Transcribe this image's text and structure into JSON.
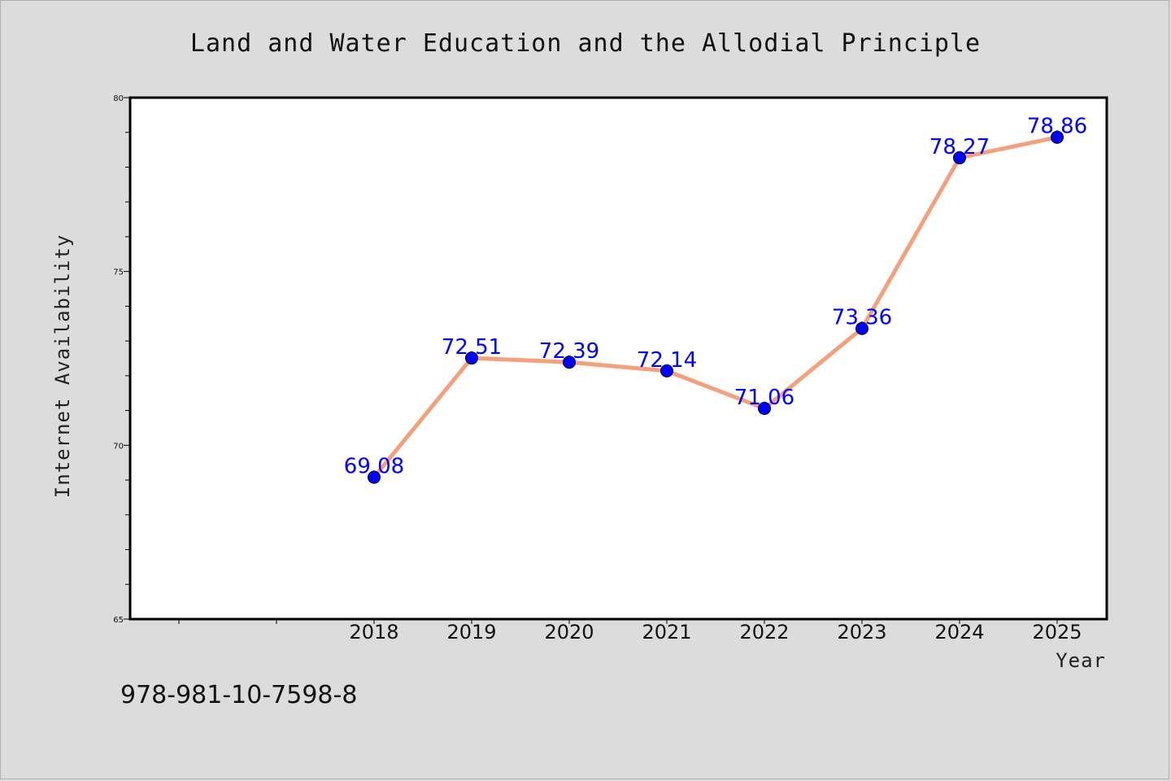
{
  "chart_data": {
    "type": "line",
    "title": "Land and Water Education and the Allodial Principle",
    "xlabel": "Year",
    "ylabel": "Internet Availability",
    "categories": [
      "2018",
      "2019",
      "2020",
      "2021",
      "2022",
      "2023",
      "2024",
      "2025"
    ],
    "series": [
      {
        "values": [
          69.08,
          72.51,
          72.39,
          72.14,
          71.06,
          73.36,
          78.27,
          78.86
        ],
        "color": "#f4a07c",
        "marker_color": "#0000ff"
      }
    ],
    "data_labels": [
      "69.08",
      "72.51",
      "72.39",
      "72.14",
      "71.06",
      "73.36",
      "78.27",
      "78.86"
    ],
    "ylim": [
      65,
      80
    ],
    "yticks": [
      "65",
      "70",
      "75",
      "80"
    ],
    "grid": false,
    "legend": "none"
  },
  "footer": {
    "isbn": "978-981-10-7598-8"
  }
}
